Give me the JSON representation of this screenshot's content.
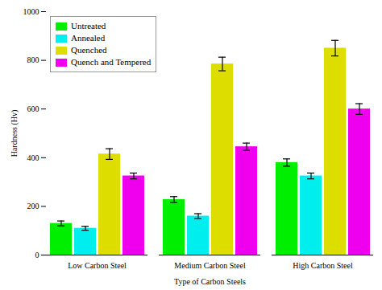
{
  "chart_data": {
    "type": "bar",
    "xlabel": "Type of Carbon Steels",
    "ylabel": "Hardness (Hv)",
    "categories": [
      "Low Carbon Steel",
      "Medium Carbon Steel",
      "High Carbon Steel"
    ],
    "series": [
      {
        "name": "Untreated",
        "color": "#00ee00",
        "values": [
          130,
          228,
          380
        ],
        "errors": [
          10,
          12,
          15
        ]
      },
      {
        "name": "Annealed",
        "color": "#00eeee",
        "values": [
          110,
          160,
          325
        ],
        "errors": [
          8,
          10,
          12
        ]
      },
      {
        "name": "Quenched",
        "color": "#dddd00",
        "values": [
          415,
          785,
          850
        ],
        "errors": [
          22,
          28,
          32
        ]
      },
      {
        "name": "Quench and Tempered",
        "color": "#ee00ee",
        "values": [
          325,
          445,
          600
        ],
        "errors": [
          12,
          15,
          22
        ]
      }
    ],
    "ylim": [
      0,
      1000
    ],
    "yticks": [
      0,
      200,
      400,
      600,
      800,
      1000
    ],
    "grid": false,
    "legend": "upper left"
  }
}
